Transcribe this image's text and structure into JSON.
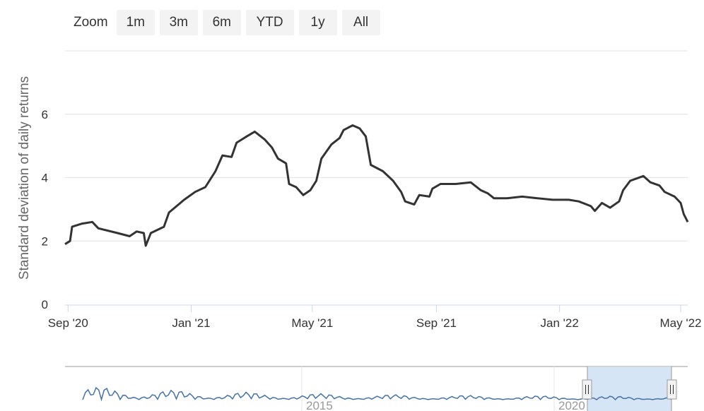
{
  "range_selector": {
    "label": "Zoom",
    "buttons": [
      "1m",
      "3m",
      "6m",
      "YTD",
      "1y",
      "All"
    ]
  },
  "colors": {
    "line": "#333333",
    "grid": "#e6e6e6",
    "navigator_line": "#4572a7",
    "navigator_mask": "#cfe0f4"
  },
  "navigator": {
    "labels": [
      "2015",
      "2020"
    ]
  },
  "chart_data": {
    "type": "line",
    "title": "",
    "xlabel": "",
    "ylabel": "Standard deviation of daily returns",
    "x_ticks": [
      "Sep '20",
      "Jan '21",
      "May '21",
      "Sep '21",
      "Jan '22",
      "May '22"
    ],
    "y_ticks": [
      0,
      2,
      4,
      6
    ],
    "ylim": [
      0,
      8
    ],
    "xlim": [
      "2020-08-29",
      "2022-05-08"
    ],
    "grid": true,
    "series": [
      {
        "values": [
          [
            "2020-08-29",
            1.9
          ],
          [
            "2020-09-03",
            2.0
          ],
          [
            "2020-09-05",
            2.45
          ],
          [
            "2020-09-15",
            2.55
          ],
          [
            "2020-09-25",
            2.6
          ],
          [
            "2020-10-01",
            2.4
          ],
          [
            "2020-10-20",
            2.25
          ],
          [
            "2020-11-01",
            2.15
          ],
          [
            "2020-11-08",
            2.3
          ],
          [
            "2020-11-15",
            2.25
          ],
          [
            "2020-11-17",
            1.85
          ],
          [
            "2020-11-22",
            2.25
          ],
          [
            "2020-12-05",
            2.45
          ],
          [
            "2020-12-10",
            2.9
          ],
          [
            "2020-12-25",
            3.3
          ],
          [
            "2021-01-05",
            3.55
          ],
          [
            "2021-01-15",
            3.7
          ],
          [
            "2021-01-25",
            4.2
          ],
          [
            "2021-02-01",
            4.7
          ],
          [
            "2021-02-10",
            4.65
          ],
          [
            "2021-02-15",
            5.1
          ],
          [
            "2021-02-25",
            5.3
          ],
          [
            "2021-03-05",
            5.45
          ],
          [
            "2021-03-15",
            5.2
          ],
          [
            "2021-03-22",
            4.95
          ],
          [
            "2021-03-28",
            4.6
          ],
          [
            "2021-04-05",
            4.45
          ],
          [
            "2021-04-08",
            3.8
          ],
          [
            "2021-04-15",
            3.7
          ],
          [
            "2021-04-22",
            3.45
          ],
          [
            "2021-04-29",
            3.6
          ],
          [
            "2021-05-05",
            3.9
          ],
          [
            "2021-05-10",
            4.6
          ],
          [
            "2021-05-20",
            5.05
          ],
          [
            "2021-05-28",
            5.25
          ],
          [
            "2021-06-01",
            5.5
          ],
          [
            "2021-06-10",
            5.65
          ],
          [
            "2021-06-17",
            5.55
          ],
          [
            "2021-06-23",
            5.3
          ],
          [
            "2021-06-28",
            4.4
          ],
          [
            "2021-07-10",
            4.2
          ],
          [
            "2021-07-20",
            3.9
          ],
          [
            "2021-07-28",
            3.55
          ],
          [
            "2021-08-01",
            3.25
          ],
          [
            "2021-08-10",
            3.15
          ],
          [
            "2021-08-15",
            3.45
          ],
          [
            "2021-08-25",
            3.4
          ],
          [
            "2021-08-28",
            3.65
          ],
          [
            "2021-09-05",
            3.8
          ],
          [
            "2021-09-20",
            3.8
          ],
          [
            "2021-10-05",
            3.85
          ],
          [
            "2021-10-15",
            3.6
          ],
          [
            "2021-10-22",
            3.5
          ],
          [
            "2021-10-28",
            3.35
          ],
          [
            "2021-11-10",
            3.35
          ],
          [
            "2021-11-25",
            3.4
          ],
          [
            "2021-12-10",
            3.35
          ],
          [
            "2021-12-25",
            3.3
          ],
          [
            "2022-01-10",
            3.3
          ],
          [
            "2022-01-20",
            3.25
          ],
          [
            "2022-02-01",
            3.1
          ],
          [
            "2022-02-05",
            2.95
          ],
          [
            "2022-02-12",
            3.2
          ],
          [
            "2022-02-20",
            3.05
          ],
          [
            "2022-03-01",
            3.25
          ],
          [
            "2022-03-05",
            3.6
          ],
          [
            "2022-03-12",
            3.9
          ],
          [
            "2022-03-25",
            4.05
          ],
          [
            "2022-04-01",
            3.85
          ],
          [
            "2022-04-10",
            3.75
          ],
          [
            "2022-04-15",
            3.55
          ],
          [
            "2022-04-25",
            3.4
          ],
          [
            "2022-05-01",
            3.2
          ],
          [
            "2022-05-04",
            2.85
          ],
          [
            "2022-05-08",
            2.6
          ]
        ]
      }
    ]
  }
}
